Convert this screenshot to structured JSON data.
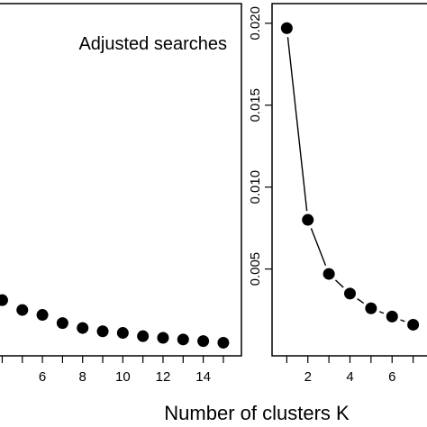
{
  "chart_data": [
    {
      "type": "scatter",
      "annotation": "Adjusted searches",
      "x_ticks": [
        6,
        8,
        10,
        12,
        14
      ],
      "xlim": [
        3.8,
        15.9
      ],
      "series": [
        {
          "x": [
            4,
            5,
            6,
            7,
            8,
            9,
            10,
            11,
            12,
            13,
            14,
            15
          ],
          "y": [
            0.0031,
            0.0025,
            0.0022,
            0.0017,
            0.0014,
            0.0012,
            0.0011,
            0.0009,
            0.0008,
            0.0007,
            0.0006,
            0.0005
          ],
          "marker": "filled-circle",
          "line": false
        }
      ],
      "ylim": [
        -0.0003,
        0.0212
      ]
    },
    {
      "type": "line",
      "x_ticks": [
        2,
        4,
        6
      ],
      "y_ticks": [
        "0.005",
        "0.010",
        "0.015",
        "0.020"
      ],
      "y_tick_values": [
        0.005,
        0.01,
        0.015,
        0.02
      ],
      "xlim": [
        0.3,
        8.0
      ],
      "ylim": [
        -0.0003,
        0.0212
      ],
      "series": [
        {
          "x": [
            1,
            2,
            3,
            4,
            5,
            6,
            7
          ],
          "y": [
            0.0197,
            0.008,
            0.0047,
            0.0035,
            0.0026,
            0.0021,
            0.0016
          ],
          "marker": "filled-circle",
          "line": "broken"
        }
      ]
    }
  ],
  "xlabel": "Number of clusters K"
}
